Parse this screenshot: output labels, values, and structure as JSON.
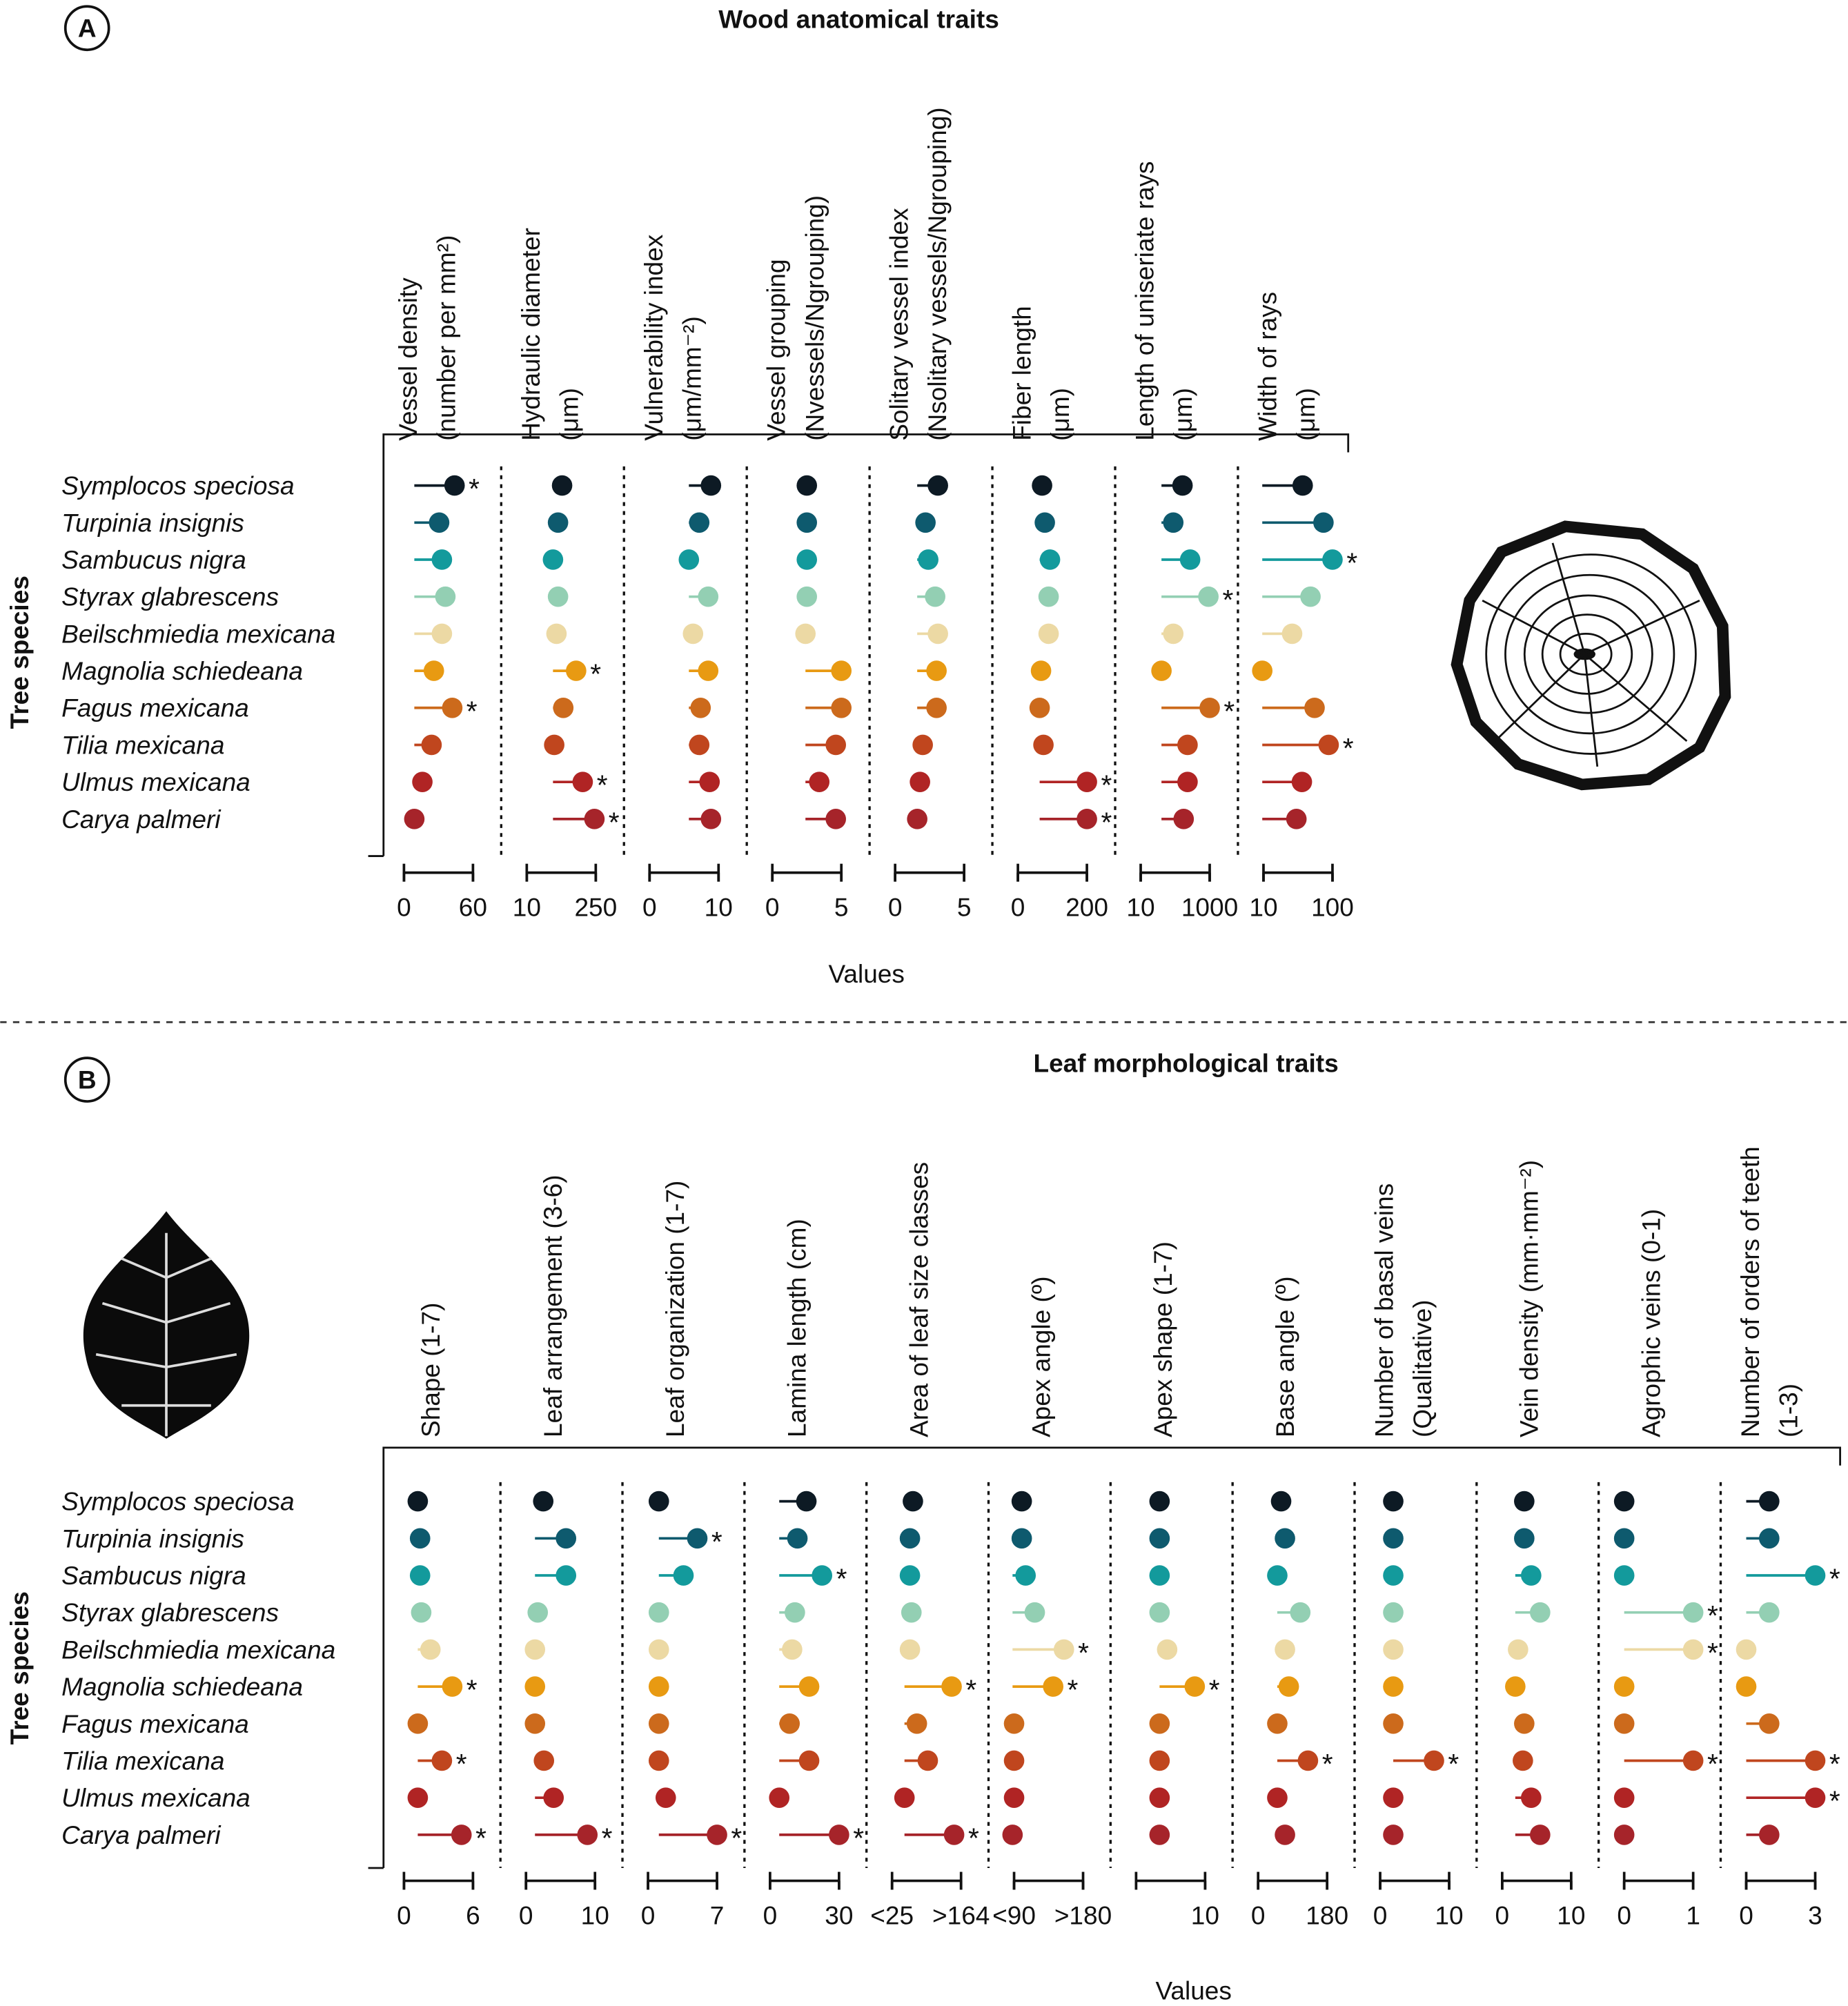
{
  "chart_data": [
    {
      "type": "lollipop",
      "panel_label": "A",
      "title": "Wood anatomical traits",
      "y_label": "Tree species",
      "x_label": "Values",
      "marker": "*",
      "categories": [
        "Symplocos speciosa",
        "Turpinia insignis",
        "Sambucus nigra",
        "Styrax glabrescens",
        "Beilschmiedia mexicana",
        "Magnolia schiedeana",
        "Fagus mexicana",
        "Tilia mexicana",
        "Ulmus mexicana",
        "Carya palmeri"
      ],
      "colors": [
        "#0d1a24",
        "#0e5a6e",
        "#139a9c",
        "#93cfb3",
        "#ecd9a4",
        "#e89a12",
        "#cc6a1c",
        "#c0461e",
        "#b02424",
        "#a6242a"
      ],
      "facets": [
        {
          "name": [
            "Vessel density",
            "(number per mm²)"
          ],
          "xlim": [
            0,
            60
          ],
          "xticks": [
            0,
            60
          ],
          "log": false,
          "values": [
            44,
            30.6,
            33,
            36,
            33,
            26,
            42,
            24,
            16,
            9
          ],
          "starred": [
            true,
            false,
            false,
            false,
            false,
            false,
            true,
            false,
            false,
            false
          ]
        },
        {
          "name": [
            "Hydraulic diameter",
            "(μm)"
          ],
          "xlim": [
            10,
            250
          ],
          "xticks": [
            10,
            250
          ],
          "log": true,
          "values": [
            52,
            43,
            34,
            43,
            40,
            100,
            55,
            36,
            136,
            235
          ],
          "starred": [
            false,
            false,
            false,
            false,
            false,
            true,
            false,
            false,
            true,
            true
          ]
        },
        {
          "name": [
            "Vulnerability index",
            "(μm/mm⁻²)"
          ],
          "xlim": [
            0,
            10
          ],
          "xticks": [
            0,
            10
          ],
          "log": false,
          "values": [
            8.9,
            7.2,
            5.7,
            8.5,
            6.3,
            8.5,
            7.4,
            7.2,
            8.7,
            8.9
          ],
          "starred": [
            false,
            false,
            false,
            false,
            false,
            false,
            false,
            false,
            false,
            false
          ]
        },
        {
          "name": [
            "Vessel grouping",
            "(Nvessels/Ngrouping)"
          ],
          "xlim": [
            0,
            5
          ],
          "xticks": [
            0,
            5
          ],
          "log": false,
          "values": [
            2.5,
            2.5,
            2.5,
            2.5,
            2.4,
            5,
            5,
            4.6,
            3.4,
            4.6
          ],
          "starred": [
            false,
            false,
            false,
            false,
            false,
            false,
            false,
            false,
            false,
            false
          ]
        },
        {
          "name": [
            "Solitary vessel index",
            "(Nsolitary vessels/Ngrouping)"
          ],
          "xlim": [
            0,
            5
          ],
          "xticks": [
            0,
            5
          ],
          "log": false,
          "values": [
            3.1,
            2.2,
            2.4,
            2.9,
            3.1,
            3.0,
            3.0,
            2.0,
            1.8,
            1.6
          ],
          "starred": [
            false,
            false,
            false,
            false,
            false,
            false,
            false,
            false,
            false,
            false
          ]
        },
        {
          "name": [
            "Fiber length",
            "(μm)"
          ],
          "xlim": [
            0,
            200
          ],
          "xticks": [
            0,
            200
          ],
          "log": false,
          "values": [
            70,
            78,
            93,
            89,
            89,
            67,
            63,
            74,
            200,
            200
          ],
          "starred": [
            false,
            false,
            false,
            false,
            false,
            false,
            false,
            false,
            true,
            true
          ]
        },
        {
          "name": [
            "Length of uniseriate rays",
            "(μm)"
          ],
          "xlim": [
            10,
            1000
          ],
          "xticks": [
            10,
            1000
          ],
          "log": true,
          "values": [
            163,
            88,
            271,
            917,
            88,
            40,
            1000,
            228,
            228,
            176
          ],
          "starred": [
            false,
            false,
            false,
            true,
            false,
            false,
            true,
            false,
            false,
            false
          ]
        },
        {
          "name": [
            "Width of rays",
            "(μm)"
          ],
          "xlim": [
            10,
            100
          ],
          "xticks": [
            10,
            100
          ],
          "log": true,
          "values": [
            37,
            74,
            100,
            48,
            26,
            9.6,
            55,
            88,
            36,
            30
          ],
          "starred": [
            false,
            false,
            true,
            false,
            false,
            false,
            false,
            true,
            false,
            false
          ]
        }
      ]
    },
    {
      "type": "lollipop",
      "panel_label": "B",
      "title": "Leaf morphological traits",
      "y_label": "Tree species",
      "x_label": "Values",
      "marker": "*",
      "categories": [
        "Symplocos speciosa",
        "Turpinia insignis",
        "Sambucus nigra",
        "Styrax glabrescens",
        "Beilschmiedia mexicana",
        "Magnolia schiedeana",
        "Fagus mexicana",
        "Tilia mexicana",
        "Ulmus mexicana",
        "Carya palmeri"
      ],
      "colors": [
        "#0d1a24",
        "#0e5a6e",
        "#139a9c",
        "#93cfb3",
        "#ecd9a4",
        "#e89a12",
        "#cc6a1c",
        "#c0461e",
        "#b02424",
        "#a6242a"
      ],
      "facets": [
        {
          "name": [
            "Shape (1-7)"
          ],
          "xlim": [
            0,
            6
          ],
          "xticks": [
            0,
            6
          ],
          "log": false,
          "values": [
            1.2,
            1.4,
            1.4,
            1.5,
            2.3,
            4.2,
            1.2,
            3.3,
            1.2,
            5.0
          ],
          "starred": [
            false,
            false,
            false,
            false,
            false,
            true,
            false,
            true,
            false,
            true
          ]
        },
        {
          "name": [
            "Leaf arrangement (3-6)"
          ],
          "xlim": [
            0,
            10
          ],
          "xticks": [
            0,
            10
          ],
          "log": false,
          "values": [
            2.5,
            5.8,
            5.8,
            1.7,
            1.3,
            1.3,
            1.3,
            2.6,
            4.0,
            8.9
          ],
          "starred": [
            false,
            false,
            false,
            false,
            false,
            false,
            false,
            false,
            false,
            true
          ]
        },
        {
          "name": [
            "Leaf organization (1-7)"
          ],
          "xlim": [
            0,
            7
          ],
          "xticks": [
            0,
            7
          ],
          "log": false,
          "values": [
            1.1,
            5.0,
            3.6,
            1.1,
            1.1,
            1.1,
            1.1,
            1.1,
            1.8,
            7.0
          ],
          "starred": [
            false,
            true,
            false,
            false,
            false,
            false,
            false,
            false,
            false,
            true
          ]
        },
        {
          "name": [
            "Lamina length (cm)"
          ],
          "xlim": [
            0,
            30
          ],
          "xticks": [
            0,
            30
          ],
          "log": false,
          "values": [
            15.8,
            11.9,
            22.6,
            10.8,
            9.6,
            17,
            8.5,
            17,
            4.0,
            30
          ],
          "starred": [
            false,
            false,
            true,
            false,
            false,
            false,
            false,
            false,
            false,
            true
          ]
        },
        {
          "name": [
            "Area of leaf size classes"
          ],
          "xlim": [
            25,
            164
          ],
          "xticks": [
            {
              "value": 25,
              "label": "<25"
            },
            {
              "value": 164,
              "label": ">164"
            }
          ],
          "log": false,
          "values": [
            67,
            61,
            61,
            64,
            61,
            145,
            75,
            97,
            50,
            150
          ],
          "starred": [
            false,
            false,
            false,
            false,
            false,
            true,
            false,
            false,
            false,
            true
          ]
        },
        {
          "name": [
            "Apex angle (º)"
          ],
          "xlim": [
            90,
            180
          ],
          "xticks": [
            {
              "value": 90,
              "label": "<90"
            },
            {
              "value": 180,
              "label": ">180"
            }
          ],
          "log": false,
          "values": [
            100,
            100,
            105,
            117,
            155,
            141,
            90,
            90,
            90,
            88
          ],
          "starred": [
            false,
            false,
            false,
            false,
            true,
            true,
            false,
            false,
            false,
            false
          ]
        },
        {
          "name": [
            "Apex shape (1-7)"
          ],
          "xlim": [
            0,
            10
          ],
          "xticks": [
            10
          ],
          "log": false,
          "values": [
            3.4,
            3.4,
            3.4,
            3.4,
            4.5,
            8.5,
            3.4,
            3.4,
            3.4,
            3.4
          ],
          "starred": [
            false,
            false,
            false,
            false,
            false,
            true,
            false,
            false,
            false,
            false
          ]
        },
        {
          "name": [
            "Base angle (º)"
          ],
          "xlim": [
            0,
            180
          ],
          "xticks": [
            0,
            180
          ],
          "log": false,
          "values": [
            60,
            70,
            50,
            110,
            70,
            80,
            50,
            130,
            50,
            70
          ],
          "starred": [
            false,
            false,
            false,
            false,
            false,
            false,
            false,
            true,
            false,
            false
          ]
        },
        {
          "name": [
            "Number of basal veins",
            "(Qualitative)"
          ],
          "xlim": [
            0,
            10
          ],
          "xticks": [
            0,
            10
          ],
          "log": false,
          "values": [
            1.9,
            1.9,
            1.9,
            1.9,
            1.9,
            1.9,
            1.9,
            7.8,
            1.9,
            1.9
          ],
          "starred": [
            false,
            false,
            false,
            false,
            false,
            false,
            false,
            true,
            false,
            false
          ]
        },
        {
          "name": [
            "Vein density (mm·mm⁻²)"
          ],
          "xlim": [
            0,
            10
          ],
          "xticks": [
            0,
            10
          ],
          "log": false,
          "values": [
            3.2,
            3.2,
            4.2,
            5.5,
            2.3,
            1.9,
            3.2,
            3.0,
            4.2,
            5.5
          ],
          "starred": [
            false,
            false,
            false,
            false,
            false,
            false,
            false,
            false,
            false,
            false
          ]
        },
        {
          "name": [
            "Agrophic veins (0-1)"
          ],
          "xlim": [
            0,
            1
          ],
          "xticks": [
            0,
            1
          ],
          "log": false,
          "values": [
            0,
            0,
            0,
            1,
            1,
            0,
            0,
            1,
            0,
            0
          ],
          "starred": [
            false,
            false,
            false,
            true,
            true,
            false,
            false,
            true,
            false,
            false
          ]
        },
        {
          "name": [
            "Number of orders of teeth",
            "(1-3)"
          ],
          "xlim": [
            0,
            3
          ],
          "xticks": [
            0,
            3
          ],
          "log": false,
          "values": [
            1,
            1,
            3,
            1,
            0,
            0,
            1,
            3,
            3,
            1
          ],
          "starred": [
            false,
            false,
            true,
            false,
            false,
            false,
            false,
            true,
            true,
            false
          ]
        }
      ]
    }
  ]
}
